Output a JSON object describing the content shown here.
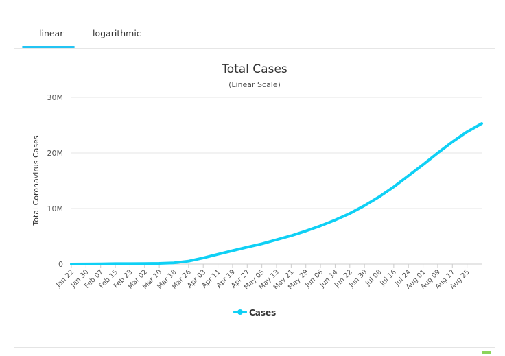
{
  "tabs": [
    {
      "label": "linear",
      "active": true
    },
    {
      "label": "logarithmic",
      "active": false
    }
  ],
  "colors": {
    "accent": "#23c4f3",
    "series": "#0fd0f5",
    "text": "#333333",
    "axis_text": "#555555",
    "grid": "#e6e6e6"
  },
  "chart_data": {
    "type": "line",
    "title": "Total Cases",
    "subtitle": "(Linear Scale)",
    "xlabel": "",
    "ylabel": "Total Coronavirus Cases",
    "ylim": [
      0,
      30000000
    ],
    "y_ticks": [
      {
        "value": 0,
        "label": "0"
      },
      {
        "value": 10000000,
        "label": "10M"
      },
      {
        "value": 20000000,
        "label": "20M"
      },
      {
        "value": 30000000,
        "label": "30M"
      }
    ],
    "x_tick_labels": [
      "Jan 22",
      "Jan 30",
      "Feb 07",
      "Feb 15",
      "Feb 23",
      "Mar 02",
      "Mar 10",
      "Mar 18",
      "Mar 26",
      "Apr 03",
      "Apr 11",
      "Apr 19",
      "Apr 27",
      "May 05",
      "May 13",
      "May 21",
      "May 29",
      "Jun 06",
      "Jun 14",
      "Jun 22",
      "Jun 30",
      "Jul 08",
      "Jul 16",
      "Jul 24",
      "Aug 01",
      "Aug 09",
      "Aug 17",
      "Aug 25"
    ],
    "grid": true,
    "legend": {
      "position": "bottom-center"
    },
    "series": [
      {
        "name": "Cases",
        "x": [
          "Jan 22",
          "Jan 30",
          "Feb 07",
          "Feb 15",
          "Feb 23",
          "Mar 02",
          "Mar 10",
          "Mar 18",
          "Mar 26",
          "Apr 03",
          "Apr 11",
          "Apr 19",
          "Apr 27",
          "May 05",
          "May 13",
          "May 21",
          "May 29",
          "Jun 06",
          "Jun 14",
          "Jun 22",
          "Jun 30",
          "Jul 08",
          "Jul 16",
          "Jul 24",
          "Aug 01",
          "Aug 09",
          "Aug 17",
          "Aug 25",
          "Aug 31"
        ],
        "values": [
          555,
          9900,
          34900,
          69000,
          79300,
          90300,
          119000,
          218000,
          530000,
          1100000,
          1770000,
          2410000,
          3050000,
          3660000,
          4380000,
          5110000,
          5950000,
          6890000,
          7920000,
          9110000,
          10520000,
          12100000,
          13900000,
          15900000,
          17900000,
          20000000,
          22000000,
          23800000,
          25300000
        ]
      }
    ]
  }
}
